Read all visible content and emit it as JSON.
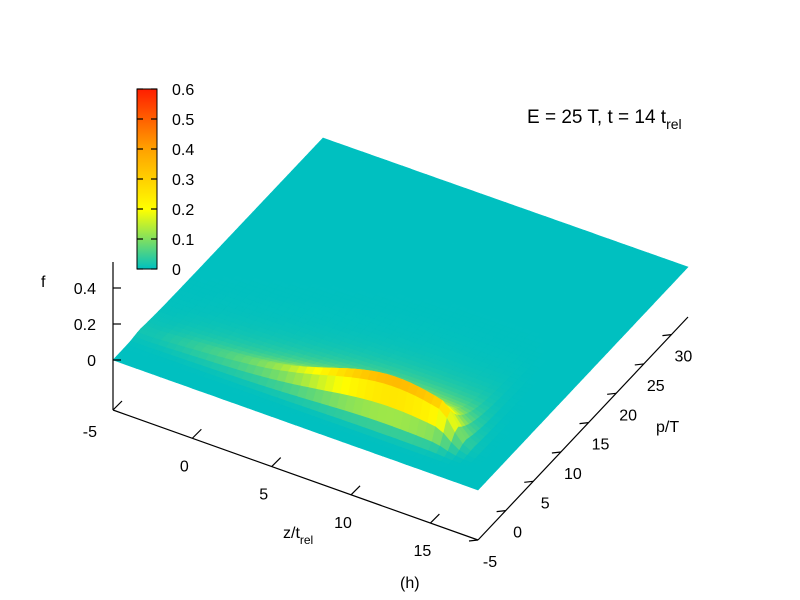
{
  "chart_data": {
    "type": "surface3d",
    "title": "E = 25 T, t = 14 t",
    "title_sub": "rel",
    "caption": "(h)",
    "xlabel": "z/t",
    "xlabel_sub": "rel",
    "ylabel": "p/T",
    "zlabel": "f",
    "xlim": [
      -5,
      18
    ],
    "ylim": [
      -5,
      33
    ],
    "zlim": [
      0,
      0.55
    ],
    "x_ticks": [
      -5,
      0,
      5,
      10,
      15
    ],
    "y_ticks": [
      -5,
      0,
      5,
      10,
      15,
      20,
      25,
      30
    ],
    "z_ticks": [
      {
        "value": 0,
        "label": "0"
      },
      {
        "value": 0.2,
        "label": "0.2"
      },
      {
        "value": 0.4,
        "label": "0.4"
      }
    ],
    "colorbar": {
      "min": 0,
      "max": 0.6,
      "ticks": [
        "0",
        "0.1",
        "0.2",
        "0.3",
        "0.4",
        "0.5",
        "0.6"
      ],
      "palette": [
        "#00c0c0",
        "#ffff00",
        "#ffa000",
        "#ff1e00"
      ]
    },
    "surface": {
      "description_free": true,
      "peak_z": 0.38,
      "peak_x": 11,
      "peak_p": 0,
      "front_x": 14
    }
  }
}
